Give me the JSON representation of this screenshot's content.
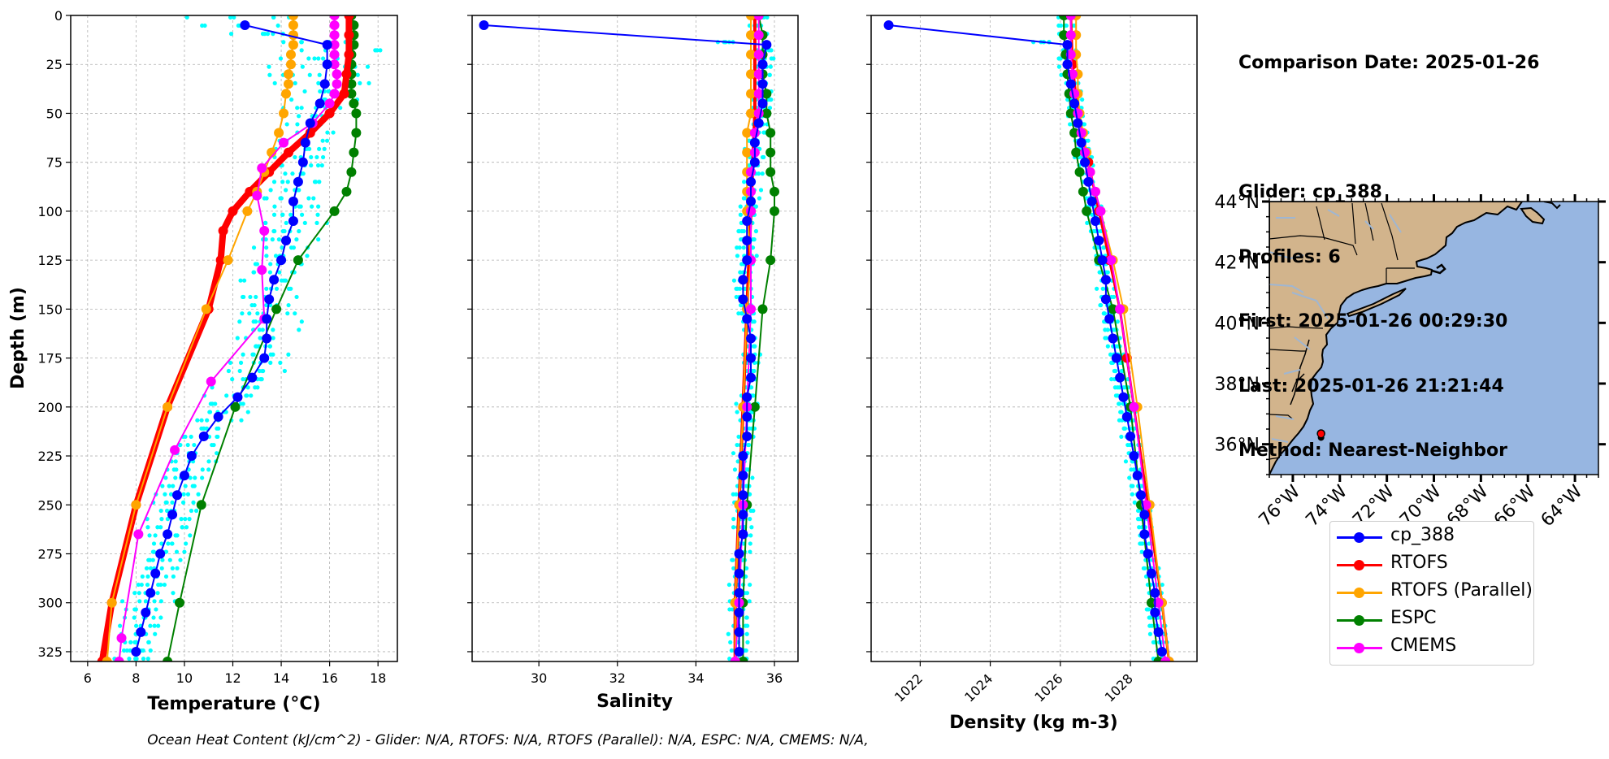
{
  "info": {
    "lines": [
      "Comparison Date: 2025-01-26",
      "",
      "Glider: cp_388",
      "Profiles: 6",
      "First: 2025-01-26 00:29:30",
      "Last: 2025-01-26 21:21:44",
      "Method: Nearest-Neighbor"
    ]
  },
  "footer": "Ocean Heat Content (kJ/cm^2) - Glider: N/A,  RTOFS: N/A,  RTOFS (Parallel): N/A,  ESPC: N/A,  CMEMS: N/A,",
  "legend": [
    {
      "label": "cp_388",
      "color": "#0000ff"
    },
    {
      "label": "RTOFS",
      "color": "#ff0000"
    },
    {
      "label": "RTOFS (Parallel)",
      "color": "#ffa500"
    },
    {
      "label": "ESPC",
      "color": "#008000"
    },
    {
      "label": "CMEMS",
      "color": "#ff00ff"
    }
  ],
  "colors": {
    "scatter": "#00ffff",
    "ocean": "#97b6e1",
    "land": "#d2b48c",
    "rivers": "#9fb6d2",
    "grid": "#b0b0b0"
  },
  "chart_data": [
    {
      "type": "line",
      "xlabel": "Temperature (°C)",
      "ylabel": "Depth (m)",
      "xlim": [
        5.3,
        18.8
      ],
      "ylim": [
        330,
        0
      ],
      "xticks": [
        6,
        8,
        10,
        12,
        14,
        16,
        18
      ],
      "yticks": [
        0,
        25,
        50,
        75,
        100,
        125,
        150,
        175,
        200,
        225,
        250,
        275,
        300,
        325
      ],
      "grid": true,
      "series": [
        {
          "name": "cp_388",
          "color": "#0000ff",
          "depth": [
            5,
            15,
            25,
            35,
            45,
            55,
            65,
            75,
            85,
            95,
            105,
            115,
            125,
            135,
            145,
            155,
            165,
            175,
            185,
            195,
            205,
            215,
            225,
            235,
            245,
            255,
            265,
            275,
            285,
            295,
            305,
            315,
            325
          ],
          "values": [
            12.5,
            15.9,
            15.9,
            15.8,
            15.6,
            15.2,
            15.0,
            14.9,
            14.7,
            14.5,
            14.5,
            14.2,
            14.0,
            13.7,
            13.5,
            13.4,
            13.4,
            13.3,
            12.8,
            12.2,
            11.4,
            10.8,
            10.3,
            10.0,
            9.7,
            9.5,
            9.3,
            9.0,
            8.8,
            8.6,
            8.4,
            8.2,
            8.0
          ]
        },
        {
          "name": "RTOFS",
          "color": "#ff0000",
          "depth": [
            0,
            10,
            20,
            30,
            40,
            50,
            60,
            70,
            80,
            90,
            100,
            110,
            125,
            150,
            200,
            250,
            300,
            330
          ],
          "values": [
            16.8,
            16.8,
            16.8,
            16.7,
            16.6,
            16.0,
            15.2,
            14.3,
            13.5,
            12.7,
            12.0,
            11.6,
            11.5,
            11.0,
            9.3,
            8.0,
            7.0,
            6.6
          ]
        },
        {
          "name": "RTOFS (Parallel)",
          "color": "#ffa500",
          "depth": [
            0,
            5,
            10,
            15,
            20,
            25,
            30,
            35,
            40,
            50,
            60,
            70,
            80,
            90,
            100,
            125,
            150,
            200,
            250,
            300,
            330
          ],
          "values": [
            14.5,
            14.5,
            14.5,
            14.5,
            14.4,
            14.4,
            14.3,
            14.3,
            14.2,
            14.1,
            13.9,
            13.6,
            13.3,
            13.0,
            12.6,
            11.8,
            10.9,
            9.3,
            8.0,
            7.0,
            6.8
          ]
        },
        {
          "name": "ESPC",
          "color": "#008000",
          "depth": [
            0,
            5,
            10,
            15,
            20,
            25,
            30,
            35,
            40,
            45,
            50,
            60,
            70,
            80,
            90,
            100,
            125,
            150,
            200,
            250,
            300,
            330
          ],
          "values": [
            16.9,
            17.0,
            17.0,
            17.0,
            16.9,
            16.9,
            16.9,
            16.9,
            16.9,
            17.0,
            17.1,
            17.1,
            17.0,
            16.9,
            16.7,
            16.2,
            14.7,
            13.8,
            12.1,
            10.7,
            9.8,
            9.3
          ]
        },
        {
          "name": "CMEMS",
          "color": "#ff00ff",
          "depth": [
            0,
            5,
            10,
            15,
            20,
            25,
            30,
            35,
            40,
            45,
            55,
            65,
            78,
            92,
            110,
            130,
            155,
            187,
            222,
            265,
            318,
            330
          ],
          "values": [
            16.2,
            16.2,
            16.2,
            16.2,
            16.2,
            16.2,
            16.3,
            16.3,
            16.2,
            16.0,
            15.3,
            14.1,
            13.2,
            13.0,
            13.3,
            13.2,
            13.3,
            11.1,
            9.6,
            8.1,
            7.4,
            7.3
          ]
        }
      ]
    },
    {
      "type": "line",
      "xlabel": "Salinity",
      "xlim": [
        28.3,
        36.6
      ],
      "ylim": [
        330,
        0
      ],
      "xticks": [
        30,
        32,
        34,
        36
      ],
      "grid": true,
      "series": [
        {
          "name": "cp_388",
          "color": "#0000ff",
          "depth": [
            5,
            15,
            25,
            35,
            45,
            55,
            65,
            75,
            85,
            95,
            105,
            115,
            125,
            135,
            145,
            155,
            165,
            175,
            185,
            195,
            205,
            215,
            225,
            235,
            245,
            255,
            265,
            275,
            285,
            295,
            305,
            315,
            325
          ],
          "values": [
            28.6,
            35.8,
            35.7,
            35.7,
            35.7,
            35.6,
            35.5,
            35.5,
            35.4,
            35.4,
            35.3,
            35.3,
            35.3,
            35.2,
            35.2,
            35.3,
            35.4,
            35.4,
            35.4,
            35.3,
            35.3,
            35.3,
            35.2,
            35.2,
            35.2,
            35.2,
            35.2,
            35.1,
            35.1,
            35.1,
            35.1,
            35.1,
            35.1
          ]
        },
        {
          "name": "RTOFS",
          "color": "#ff0000",
          "depth": [
            0,
            50,
            100,
            150,
            200,
            250,
            300,
            330
          ],
          "values": [
            35.5,
            35.5,
            35.4,
            35.3,
            35.2,
            35.1,
            35.0,
            35.0
          ]
        },
        {
          "name": "RTOFS (Parallel)",
          "color": "#ffa500",
          "depth": [
            0,
            10,
            20,
            30,
            40,
            50,
            60,
            70,
            80,
            90,
            100,
            125,
            150,
            200,
            250,
            300,
            330
          ],
          "values": [
            35.4,
            35.4,
            35.4,
            35.4,
            35.4,
            35.4,
            35.3,
            35.3,
            35.3,
            35.3,
            35.3,
            35.4,
            35.3,
            35.2,
            35.1,
            35.0,
            35.0
          ]
        },
        {
          "name": "ESPC",
          "color": "#008000",
          "depth": [
            0,
            10,
            20,
            30,
            40,
            50,
            60,
            70,
            80,
            90,
            100,
            125,
            150,
            200,
            250,
            300,
            330
          ],
          "values": [
            35.6,
            35.7,
            35.7,
            35.7,
            35.8,
            35.8,
            35.9,
            35.9,
            35.9,
            36.0,
            36.0,
            35.9,
            35.7,
            35.5,
            35.3,
            35.2,
            35.2
          ]
        },
        {
          "name": "CMEMS",
          "color": "#ff00ff",
          "depth": [
            0,
            10,
            20,
            30,
            40,
            50,
            60,
            70,
            80,
            90,
            100,
            125,
            150,
            200,
            250,
            300,
            330
          ],
          "values": [
            35.6,
            35.6,
            35.6,
            35.6,
            35.6,
            35.6,
            35.5,
            35.5,
            35.4,
            35.4,
            35.4,
            35.4,
            35.4,
            35.3,
            35.2,
            35.1,
            35.0
          ]
        }
      ]
    },
    {
      "type": "line",
      "xlabel": "Density (kg m-3)",
      "xlim": [
        1020.6,
        1029.9
      ],
      "ylim": [
        330,
        0
      ],
      "xticks": [
        1022,
        1024,
        1026,
        1028
      ],
      "grid": true,
      "series": [
        {
          "name": "cp_388",
          "color": "#0000ff",
          "depth": [
            5,
            15,
            25,
            35,
            45,
            55,
            65,
            75,
            85,
            95,
            105,
            115,
            125,
            135,
            145,
            155,
            165,
            175,
            185,
            195,
            205,
            215,
            225,
            235,
            245,
            255,
            265,
            275,
            285,
            295,
            305,
            315,
            325
          ],
          "values": [
            1021.1,
            1026.2,
            1026.2,
            1026.3,
            1026.4,
            1026.5,
            1026.6,
            1026.7,
            1026.8,
            1026.9,
            1027.0,
            1027.1,
            1027.2,
            1027.3,
            1027.3,
            1027.4,
            1027.5,
            1027.6,
            1027.7,
            1027.8,
            1027.9,
            1028.0,
            1028.1,
            1028.2,
            1028.3,
            1028.4,
            1028.4,
            1028.5,
            1028.6,
            1028.7,
            1028.7,
            1028.8,
            1028.9
          ]
        },
        {
          "name": "RTOFS",
          "color": "#ff0000",
          "depth": [
            0,
            25,
            50,
            75,
            100,
            125,
            150,
            175,
            200,
            250,
            300,
            330
          ],
          "values": [
            1026.3,
            1026.35,
            1026.5,
            1026.8,
            1027.1,
            1027.4,
            1027.7,
            1027.9,
            1028.1,
            1028.5,
            1028.9,
            1029.1
          ]
        },
        {
          "name": "RTOFS (Parallel)",
          "color": "#ffa500",
          "depth": [
            0,
            10,
            20,
            30,
            40,
            50,
            60,
            70,
            80,
            90,
            100,
            125,
            150,
            200,
            250,
            300,
            330
          ],
          "values": [
            1026.45,
            1026.45,
            1026.45,
            1026.5,
            1026.5,
            1026.55,
            1026.65,
            1026.75,
            1026.85,
            1027.0,
            1027.15,
            1027.5,
            1027.8,
            1028.2,
            1028.55,
            1028.9,
            1029.1
          ]
        },
        {
          "name": "ESPC",
          "color": "#008000",
          "depth": [
            0,
            10,
            20,
            30,
            40,
            50,
            60,
            70,
            80,
            90,
            100,
            125,
            150,
            200,
            250,
            300,
            330
          ],
          "values": [
            1026.1,
            1026.1,
            1026.15,
            1026.2,
            1026.25,
            1026.3,
            1026.4,
            1026.45,
            1026.55,
            1026.65,
            1026.75,
            1027.1,
            1027.5,
            1028.0,
            1028.3,
            1028.6,
            1028.8
          ]
        },
        {
          "name": "CMEMS",
          "color": "#ff00ff",
          "depth": [
            0,
            10,
            20,
            30,
            40,
            50,
            60,
            70,
            80,
            90,
            100,
            125,
            150,
            200,
            250,
            300,
            330
          ],
          "values": [
            1026.3,
            1026.3,
            1026.3,
            1026.35,
            1026.4,
            1026.5,
            1026.6,
            1026.7,
            1026.85,
            1027.0,
            1027.15,
            1027.45,
            1027.7,
            1028.1,
            1028.45,
            1028.8,
            1029.0
          ]
        }
      ]
    }
  ],
  "map": {
    "lon_range": [
      -77,
      -63
    ],
    "lat_range": [
      35,
      44
    ],
    "yticks": [
      "36°N",
      "38°N",
      "40°N",
      "42°N",
      "44°N"
    ],
    "xticks": [
      "76°W",
      "74°W",
      "72°W",
      "70°W",
      "68°W",
      "66°W",
      "64°W"
    ],
    "marker": {
      "lon": -74.8,
      "lat": 36.3,
      "color": "#ff0000"
    }
  }
}
